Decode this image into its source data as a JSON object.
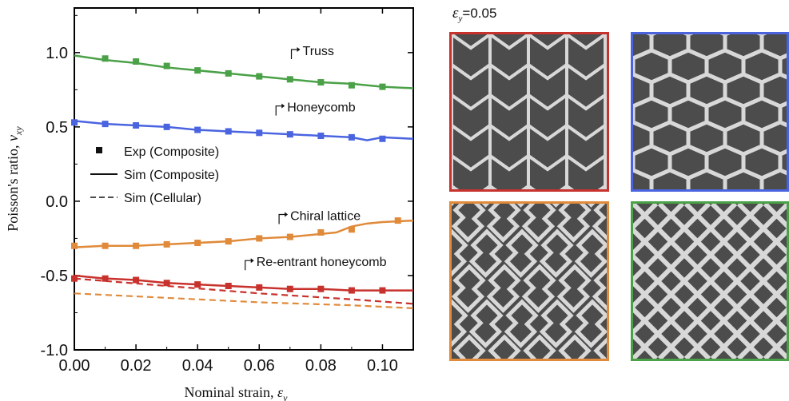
{
  "colors": {
    "truss": "#4aa147",
    "honeycomb": "#4a64e0",
    "chiral": "#e08a3a",
    "reentrant": "#c8322d"
  },
  "chart_data": {
    "type": "line",
    "xlabel_text": "Nominal strain, ",
    "xlabel_var": "ε",
    "xlabel_sub": "y",
    "ylabel_text": "Poisson's ratio, ",
    "ylabel_var": "ν",
    "ylabel_sub": "xy",
    "xlim": [
      0.0,
      0.11
    ],
    "ylim": [
      -1.0,
      1.3
    ],
    "xticks": [
      0.0,
      0.02,
      0.04,
      0.06,
      0.08,
      0.1
    ],
    "xtick_labels": [
      "0.00",
      "0.02",
      "0.04",
      "0.06",
      "0.08",
      "0.10"
    ],
    "yticks": [
      -1.0,
      -0.5,
      0.0,
      0.5,
      1.0
    ],
    "ytick_labels": [
      "-1.0",
      "-0.5",
      "0.0",
      "0.5",
      "1.0"
    ],
    "legend": [
      {
        "label": "Exp (Composite)",
        "style": "marker"
      },
      {
        "label": "Sim (Composite)",
        "style": "solid"
      },
      {
        "label": "Sim (Cellular)",
        "style": "dashed"
      }
    ],
    "series": [
      {
        "name": "Truss",
        "color_key": "truss",
        "exp_x": [
          0.01,
          0.02,
          0.03,
          0.04,
          0.05,
          0.06,
          0.07,
          0.08,
          0.09,
          0.1
        ],
        "exp_y": [
          0.96,
          0.94,
          0.91,
          0.88,
          0.86,
          0.84,
          0.82,
          0.8,
          0.78,
          0.77
        ],
        "sim_x": [
          0.0,
          0.01,
          0.02,
          0.03,
          0.04,
          0.05,
          0.06,
          0.07,
          0.08,
          0.09,
          0.1,
          0.11
        ],
        "sim_y": [
          0.98,
          0.95,
          0.93,
          0.9,
          0.88,
          0.86,
          0.84,
          0.82,
          0.8,
          0.79,
          0.77,
          0.76
        ],
        "label_x": 0.072,
        "label_y": 1.01
      },
      {
        "name": "Honeycomb",
        "color_key": "honeycomb",
        "exp_x": [
          0.0,
          0.01,
          0.02,
          0.03,
          0.04,
          0.05,
          0.06,
          0.07,
          0.08,
          0.09,
          0.1
        ],
        "exp_y": [
          0.53,
          0.52,
          0.51,
          0.5,
          0.48,
          0.47,
          0.46,
          0.45,
          0.44,
          0.43,
          0.42
        ],
        "sim_x": [
          0.0,
          0.01,
          0.02,
          0.03,
          0.04,
          0.05,
          0.06,
          0.07,
          0.08,
          0.09,
          0.095,
          0.1,
          0.11
        ],
        "sim_y": [
          0.54,
          0.52,
          0.51,
          0.5,
          0.48,
          0.47,
          0.46,
          0.45,
          0.44,
          0.43,
          0.41,
          0.43,
          0.42
        ],
        "label_x": 0.067,
        "label_y": 0.63
      },
      {
        "name": "Chiral lattice",
        "color_key": "chiral",
        "exp_x": [
          0.0,
          0.01,
          0.02,
          0.03,
          0.04,
          0.05,
          0.06,
          0.07,
          0.08,
          0.09,
          0.105
        ],
        "exp_y": [
          -0.3,
          -0.3,
          -0.3,
          -0.29,
          -0.28,
          -0.27,
          -0.25,
          -0.24,
          -0.21,
          -0.19,
          -0.13
        ],
        "sim_x": [
          0.0,
          0.01,
          0.02,
          0.03,
          0.04,
          0.05,
          0.06,
          0.07,
          0.08,
          0.085,
          0.09,
          0.095,
          0.1,
          0.11
        ],
        "sim_y": [
          -0.31,
          -0.3,
          -0.3,
          -0.29,
          -0.28,
          -0.27,
          -0.25,
          -0.24,
          -0.22,
          -0.21,
          -0.17,
          -0.15,
          -0.14,
          -0.13
        ],
        "label_x": 0.068,
        "label_y": -0.1
      },
      {
        "name": "Re-entrant honeycomb",
        "color_key": "reentrant",
        "exp_x": [
          0.0,
          0.01,
          0.02,
          0.03,
          0.04,
          0.05,
          0.06,
          0.07,
          0.08,
          0.09,
          0.1
        ],
        "exp_y": [
          -0.52,
          -0.52,
          -0.53,
          -0.55,
          -0.56,
          -0.57,
          -0.58,
          -0.59,
          -0.59,
          -0.6,
          -0.6
        ],
        "sim_x": [
          0.0,
          0.01,
          0.02,
          0.03,
          0.04,
          0.05,
          0.06,
          0.07,
          0.08,
          0.09,
          0.1,
          0.11
        ],
        "sim_y": [
          -0.5,
          -0.52,
          -0.53,
          -0.55,
          -0.56,
          -0.57,
          -0.58,
          -0.59,
          -0.59,
          -0.6,
          -0.6,
          -0.6
        ],
        "label_x": 0.057,
        "label_y": -0.41
      }
    ],
    "cellular_dashed": [
      {
        "color_key": "reentrant",
        "x": [
          0.0,
          0.03,
          0.06,
          0.09,
          0.11
        ],
        "y": [
          -0.52,
          -0.57,
          -0.62,
          -0.66,
          -0.69
        ]
      },
      {
        "color_key": "chiral",
        "x": [
          0.0,
          0.03,
          0.06,
          0.09,
          0.11
        ],
        "y": [
          -0.62,
          -0.65,
          -0.68,
          -0.7,
          -0.72
        ]
      }
    ]
  },
  "images": {
    "strain_label_var": "ε",
    "strain_label_sub": "y",
    "strain_label_value": "=0.05"
  }
}
